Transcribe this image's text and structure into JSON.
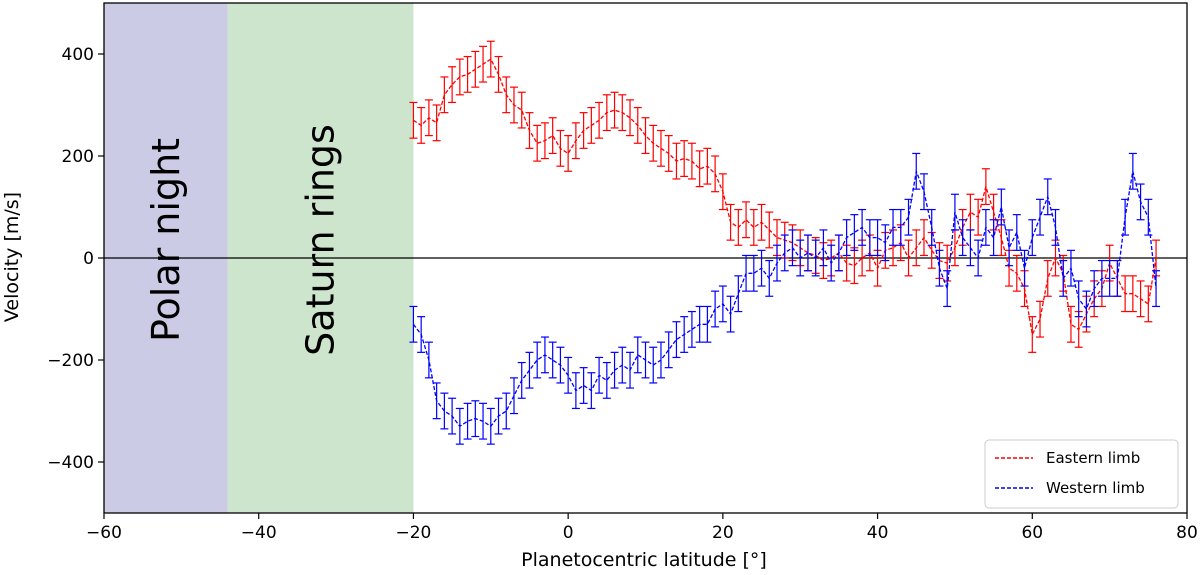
{
  "chart_data": {
    "type": "line",
    "title": "",
    "xlabel": "Planetocentric latitude [°]",
    "ylabel": "Velocity [m/s]",
    "xlim": [
      -60,
      80
    ],
    "ylim": [
      -500,
      500
    ],
    "xticks": [
      -60,
      -40,
      -20,
      0,
      20,
      40,
      60,
      80
    ],
    "yticks": [
      -400,
      -200,
      0,
      200,
      400
    ],
    "xtick_labels": [
      "−60",
      "−40",
      "−20",
      "0",
      "20",
      "40",
      "60",
      "80"
    ],
    "ytick_labels": [
      "−400",
      "−200",
      "0",
      "200",
      "400"
    ],
    "zero_line": 0,
    "grid": false,
    "legend_position": "lower-right",
    "regions": [
      {
        "label": "Polar night",
        "x_start": -60,
        "x_end": -44,
        "color": "#cbcbe6"
      },
      {
        "label": "Saturn rings",
        "x_start": -44,
        "x_end": -20,
        "color": "#cce5cc"
      }
    ],
    "series": [
      {
        "name": "Eastern limb",
        "color": "#ff0000",
        "linestyle": "dashed",
        "error": 35,
        "x": [
          -20,
          -19,
          -18,
          -17,
          -16,
          -15,
          -14,
          -13,
          -12,
          -11,
          -10,
          -9,
          -8,
          -7,
          -6,
          -5,
          -4,
          -3,
          -2,
          -1,
          0,
          1,
          2,
          3,
          4,
          5,
          6,
          7,
          8,
          9,
          10,
          11,
          12,
          13,
          14,
          15,
          16,
          17,
          18,
          19,
          20,
          21,
          22,
          23,
          24,
          25,
          26,
          27,
          28,
          29,
          30,
          31,
          32,
          33,
          34,
          35,
          36,
          37,
          38,
          39,
          40,
          41,
          42,
          43,
          44,
          45,
          46,
          47,
          48,
          49,
          50,
          51,
          52,
          53,
          54,
          55,
          56,
          57,
          58,
          59,
          60,
          61,
          62,
          63,
          64,
          65,
          66,
          67,
          68,
          69,
          70,
          71,
          72,
          73,
          74,
          75,
          76
        ],
        "y": [
          270,
          260,
          275,
          265,
          320,
          340,
          355,
          360,
          370,
          380,
          390,
          360,
          320,
          300,
          290,
          250,
          225,
          230,
          240,
          215,
          205,
          230,
          250,
          260,
          270,
          285,
          290,
          285,
          275,
          260,
          240,
          225,
          215,
          205,
          190,
          195,
          190,
          175,
          180,
          165,
          130,
          70,
          60,
          75,
          60,
          70,
          55,
          40,
          35,
          30,
          20,
          10,
          5,
          -5,
          0,
          10,
          -10,
          -15,
          0,
          10,
          -20,
          15,
          20,
          30,
          0,
          20,
          40,
          15,
          -5,
          -10,
          20,
          60,
          90,
          80,
          140,
          90,
          40,
          -20,
          -30,
          -60,
          -150,
          -120,
          -40,
          0,
          -30,
          -130,
          -140,
          -110,
          -80,
          -60,
          -10,
          -40,
          -70,
          -70,
          -80,
          -90,
          0
        ]
      },
      {
        "name": "Western limb",
        "color": "#0000ff",
        "linestyle": "dashed",
        "error": 35,
        "x": [
          -20,
          -19,
          -18,
          -17,
          -16,
          -15,
          -14,
          -13,
          -12,
          -11,
          -10,
          -9,
          -8,
          -7,
          -6,
          -5,
          -4,
          -3,
          -2,
          -1,
          0,
          1,
          2,
          3,
          4,
          5,
          6,
          7,
          8,
          9,
          10,
          11,
          12,
          13,
          14,
          15,
          16,
          17,
          18,
          19,
          20,
          21,
          22,
          23,
          24,
          25,
          26,
          27,
          28,
          29,
          30,
          31,
          32,
          33,
          34,
          35,
          36,
          37,
          38,
          39,
          40,
          41,
          42,
          43,
          44,
          45,
          46,
          47,
          48,
          49,
          50,
          51,
          52,
          53,
          54,
          55,
          56,
          57,
          58,
          59,
          60,
          61,
          62,
          63,
          64,
          65,
          66,
          67,
          68,
          69,
          70,
          71,
          72,
          73,
          74,
          75,
          76
        ],
        "y": [
          -130,
          -150,
          -200,
          -280,
          -300,
          -310,
          -330,
          -320,
          -315,
          -320,
          -330,
          -310,
          -300,
          -270,
          -240,
          -220,
          -200,
          -190,
          -200,
          -210,
          -230,
          -260,
          -250,
          -260,
          -230,
          -240,
          -220,
          -210,
          -220,
          -190,
          -200,
          -210,
          -200,
          -180,
          -160,
          -150,
          -140,
          -130,
          -130,
          -100,
          -90,
          -110,
          -70,
          -30,
          -30,
          -20,
          -40,
          -10,
          10,
          20,
          0,
          10,
          0,
          20,
          -10,
          10,
          40,
          50,
          60,
          40,
          40,
          30,
          60,
          60,
          80,
          170,
          130,
          60,
          -20,
          -60,
          90,
          40,
          20,
          0,
          60,
          40,
          100,
          20,
          50,
          -20,
          40,
          80,
          120,
          60,
          -40,
          -20,
          -80,
          -100,
          -60,
          -40,
          -40,
          -40,
          80,
          170,
          110,
          80,
          -60
        ]
      }
    ]
  }
}
